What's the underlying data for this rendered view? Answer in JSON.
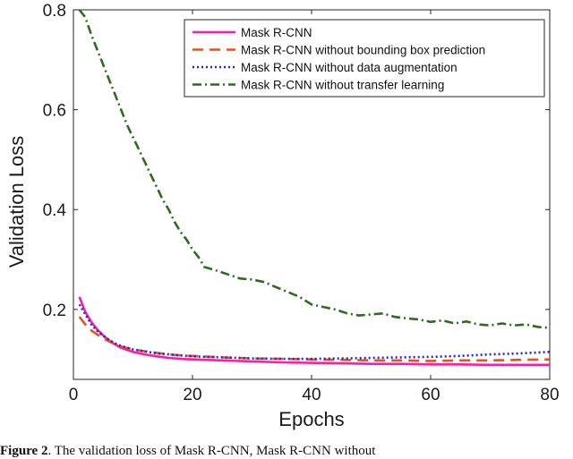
{
  "chart_data": {
    "type": "line",
    "title": "",
    "xlabel": "Epochs",
    "ylabel": "Validation Loss",
    "xlim": [
      0,
      80
    ],
    "ylim": [
      0.06,
      0.8
    ],
    "xticks": [
      0,
      20,
      40,
      60,
      80
    ],
    "yticks": [
      0.2,
      0.4,
      0.6,
      0.8
    ],
    "grid": false,
    "legend_position": "top-right",
    "series": [
      {
        "name": "Mask R-CNN",
        "color": "#ff1aa8",
        "style": "solid",
        "x": [
          1,
          2,
          3,
          4,
          5,
          6,
          7,
          8,
          10,
          12,
          14,
          16,
          18,
          20,
          25,
          30,
          35,
          40,
          45,
          50,
          55,
          60,
          65,
          70,
          75,
          80
        ],
        "y": [
          0.225,
          0.195,
          0.175,
          0.16,
          0.148,
          0.138,
          0.13,
          0.123,
          0.115,
          0.11,
          0.106,
          0.103,
          0.101,
          0.1,
          0.098,
          0.096,
          0.094,
          0.093,
          0.092,
          0.091,
          0.091,
          0.09,
          0.09,
          0.089,
          0.089,
          0.089
        ]
      },
      {
        "name": "Mask R-CNN without bounding box prediction",
        "color": "#e8501c",
        "style": "dashed",
        "x": [
          1,
          2,
          3,
          4,
          5,
          6,
          7,
          8,
          10,
          12,
          14,
          16,
          18,
          20,
          25,
          30,
          35,
          40,
          45,
          50,
          55,
          60,
          65,
          70,
          75,
          80
        ],
        "y": [
          0.185,
          0.17,
          0.158,
          0.15,
          0.142,
          0.136,
          0.13,
          0.126,
          0.12,
          0.116,
          0.113,
          0.11,
          0.108,
          0.107,
          0.104,
          0.102,
          0.101,
          0.1,
          0.099,
          0.098,
          0.098,
          0.097,
          0.098,
          0.098,
          0.099,
          0.1
        ]
      },
      {
        "name": "Mask R-CNN without data augmentation",
        "color": "#1f2ad6",
        "style": "dotted",
        "x": [
          1,
          2,
          3,
          4,
          5,
          6,
          7,
          8,
          10,
          12,
          14,
          16,
          18,
          20,
          25,
          30,
          35,
          40,
          45,
          50,
          55,
          60,
          65,
          70,
          75,
          80
        ],
        "y": [
          0.21,
          0.19,
          0.17,
          0.157,
          0.147,
          0.139,
          0.132,
          0.127,
          0.12,
          0.116,
          0.112,
          0.11,
          0.108,
          0.106,
          0.104,
          0.102,
          0.101,
          0.101,
          0.102,
          0.103,
          0.104,
          0.105,
          0.107,
          0.11,
          0.112,
          0.115
        ]
      },
      {
        "name": "Mask R-CNN without transfer learning",
        "color": "#2d6b1e",
        "style": "dashdot",
        "x": [
          1,
          2,
          3,
          4,
          5,
          6,
          7,
          8,
          9,
          10,
          11,
          12,
          13,
          14,
          15,
          16,
          17,
          18,
          19,
          20,
          21,
          22,
          24,
          26,
          28,
          30,
          32,
          34,
          36,
          38,
          40,
          42,
          44,
          46,
          48,
          50,
          52,
          54,
          56,
          58,
          60,
          62,
          64,
          66,
          68,
          70,
          72,
          74,
          76,
          78,
          80
        ],
        "y": [
          0.8,
          0.785,
          0.75,
          0.72,
          0.69,
          0.66,
          0.63,
          0.6,
          0.57,
          0.545,
          0.52,
          0.495,
          0.47,
          0.445,
          0.42,
          0.4,
          0.375,
          0.355,
          0.34,
          0.32,
          0.305,
          0.285,
          0.278,
          0.27,
          0.262,
          0.26,
          0.255,
          0.245,
          0.235,
          0.225,
          0.21,
          0.205,
          0.2,
          0.192,
          0.188,
          0.19,
          0.192,
          0.185,
          0.182,
          0.18,
          0.175,
          0.178,
          0.172,
          0.176,
          0.17,
          0.168,
          0.172,
          0.168,
          0.17,
          0.165,
          0.163
        ]
      }
    ]
  },
  "caption": {
    "label": "Figure 2",
    "text": ". The validation loss of Mask R-CNN, Mask R-CNN without"
  }
}
